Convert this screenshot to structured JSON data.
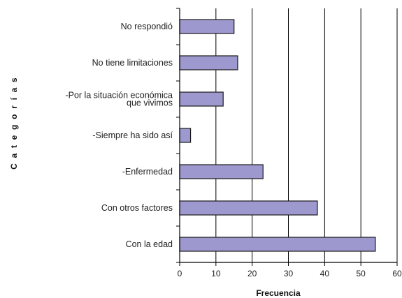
{
  "chart_data": {
    "type": "bar",
    "orientation": "horizontal",
    "categories": [
      [
        "No respondió"
      ],
      [
        "No tiene limitaciones"
      ],
      [
        "-Por la situación económica",
        "que vivimos"
      ],
      [
        "-Siempre ha sido así"
      ],
      [
        "-Enfermedad"
      ],
      [
        "Con otros factores"
      ],
      [
        "Con la edad"
      ]
    ],
    "values": [
      15,
      16,
      12,
      3,
      23,
      38,
      54
    ],
    "xlabel": "Frecuencia",
    "ylabel": "C a t e g o r í a s",
    "xlim": [
      0,
      60
    ],
    "xticks": [
      0,
      10,
      20,
      30,
      40,
      50,
      60
    ],
    "grid": "vertical",
    "colors": {
      "bar_fill": "#9d99cf",
      "bar_stroke": "#1a1a1a",
      "grid": "#000000",
      "text": "#222222"
    }
  }
}
